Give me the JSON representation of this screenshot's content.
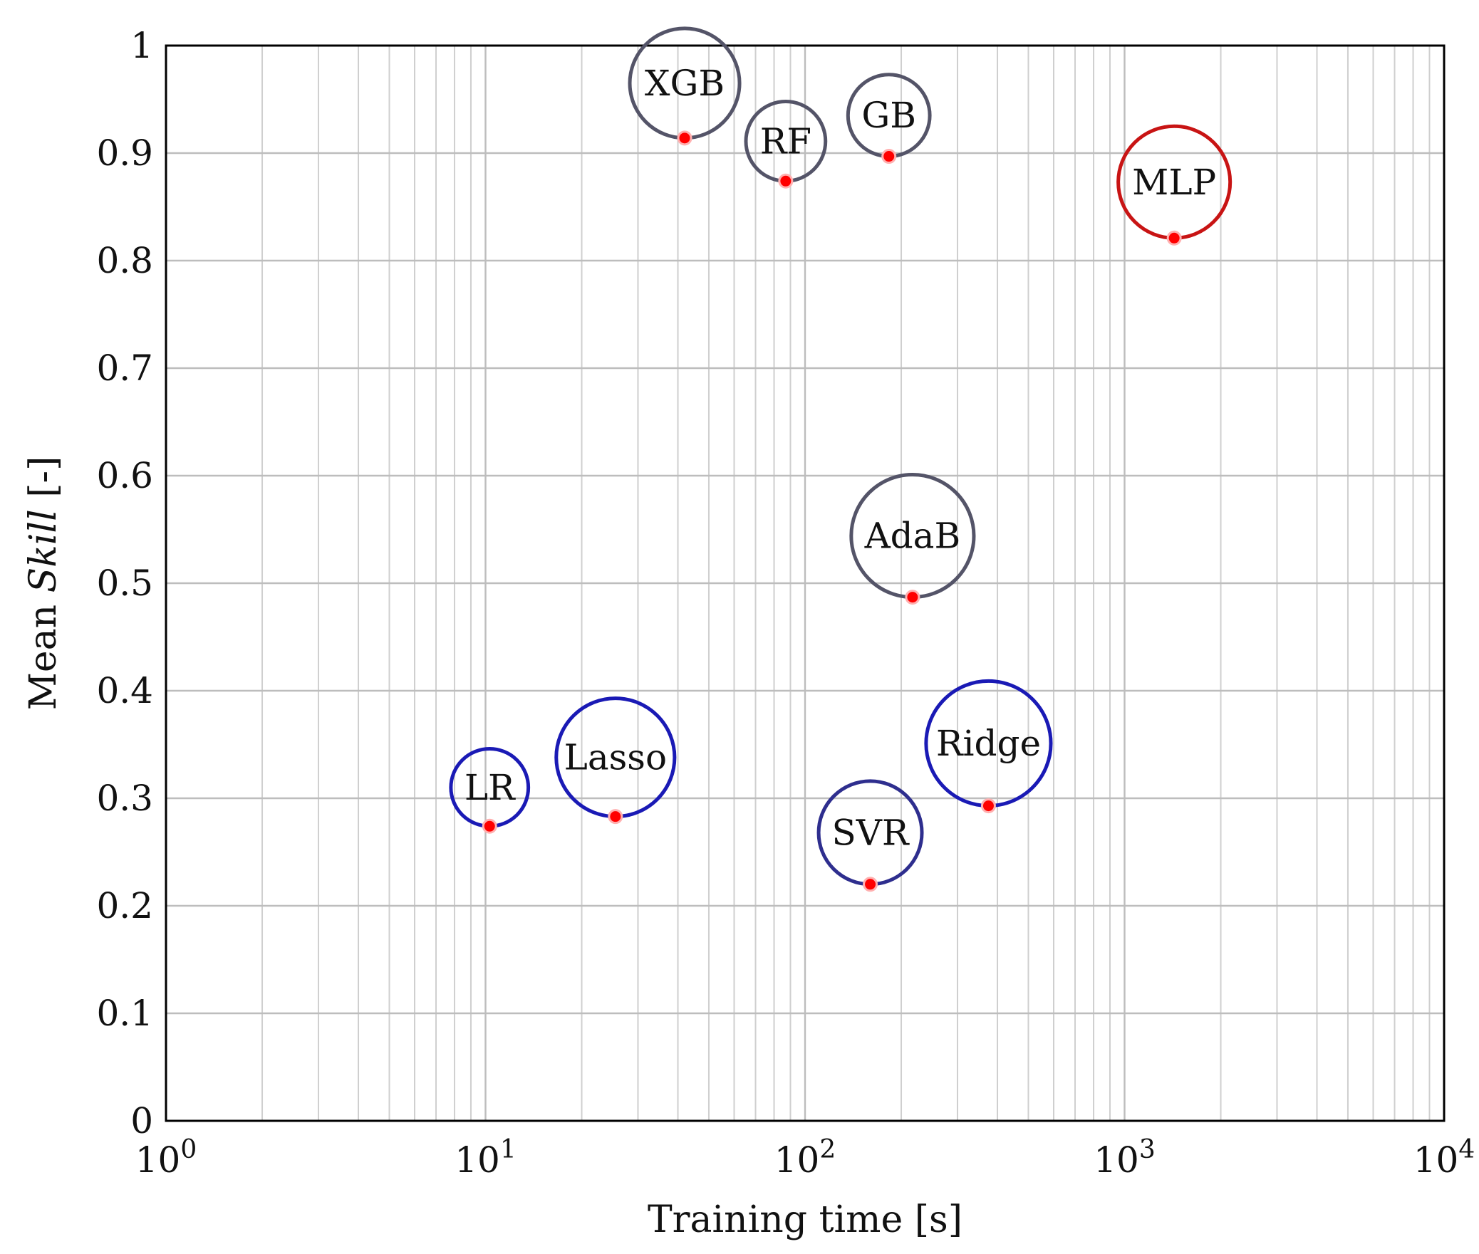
{
  "chart_data": {
    "type": "scatter",
    "xscale": "log",
    "xlim": [
      1,
      10000
    ],
    "ylim": [
      0,
      1
    ],
    "grid": true,
    "xlabel": "Training time [s]",
    "ylabel_prefix": "Mean ",
    "ylabel_italic": "Skill",
    "ylabel_suffix": " [-]",
    "x_ticks": [
      {
        "value": 1,
        "base": "10",
        "exp": "0"
      },
      {
        "value": 10,
        "base": "10",
        "exp": "1"
      },
      {
        "value": 100,
        "base": "10",
        "exp": "2"
      },
      {
        "value": 1000,
        "base": "10",
        "exp": "3"
      },
      {
        "value": 10000,
        "base": "10",
        "exp": "4"
      }
    ],
    "y_ticks": [
      {
        "value": 0,
        "label": "0"
      },
      {
        "value": 0.1,
        "label": "0.1"
      },
      {
        "value": 0.2,
        "label": "0.2"
      },
      {
        "value": 0.3,
        "label": "0.3"
      },
      {
        "value": 0.4,
        "label": "0.4"
      },
      {
        "value": 0.5,
        "label": "0.5"
      },
      {
        "value": 0.6,
        "label": "0.6"
      },
      {
        "value": 0.7,
        "label": "0.7"
      },
      {
        "value": 0.8,
        "label": "0.8"
      },
      {
        "value": 0.9,
        "label": "0.9"
      },
      {
        "value": 1,
        "label": "1"
      }
    ],
    "point_color": "#ff0000",
    "points": [
      {
        "label": "LR",
        "x": 10.3,
        "y": 0.274,
        "bubble_size": 0.036,
        "color": "#1a1ab5"
      },
      {
        "label": "Lasso",
        "x": 25.5,
        "y": 0.283,
        "bubble_size": 0.055,
        "color": "#1a1ab5"
      },
      {
        "label": "XGB",
        "x": 42,
        "y": 0.914,
        "bubble_size": 0.051,
        "color": "#545468"
      },
      {
        "label": "RF",
        "x": 87,
        "y": 0.874,
        "bubble_size": 0.037,
        "color": "#545468"
      },
      {
        "label": "SVR",
        "x": 160,
        "y": 0.22,
        "bubble_size": 0.048,
        "color": "#2e2e8e"
      },
      {
        "label": "GB",
        "x": 183,
        "y": 0.897,
        "bubble_size": 0.038,
        "color": "#545468"
      },
      {
        "label": "AdaB",
        "x": 217,
        "y": 0.487,
        "bubble_size": 0.057,
        "color": "#545468"
      },
      {
        "label": "Ridge",
        "x": 375,
        "y": 0.293,
        "bubble_size": 0.058,
        "color": "#1a1ab5"
      },
      {
        "label": "MLP",
        "x": 1430,
        "y": 0.821,
        "bubble_size": 0.052,
        "color": "#c81414"
      }
    ]
  }
}
